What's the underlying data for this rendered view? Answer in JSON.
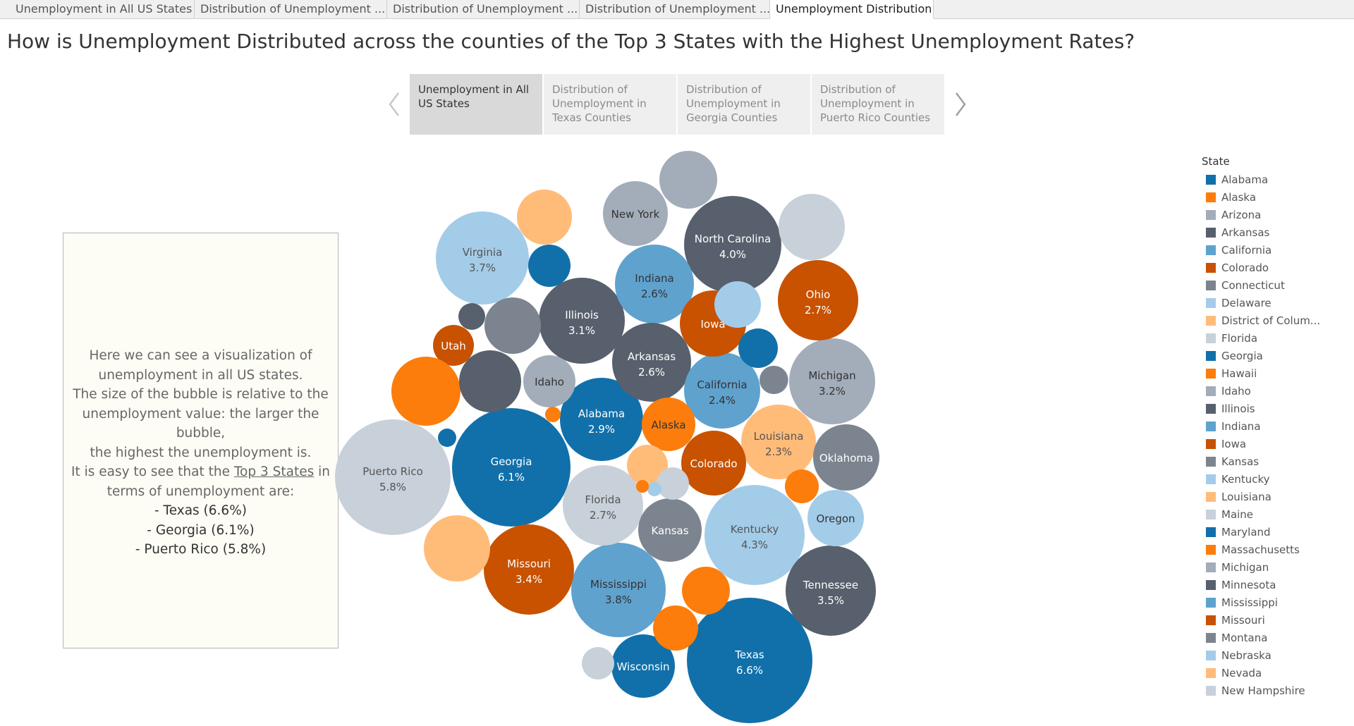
{
  "tabs": [
    {
      "label": "Unemployment in All US States",
      "active": false
    },
    {
      "label": "Distribution of Unemployment ...",
      "active": false
    },
    {
      "label": "Distribution of Unemployment ...",
      "active": false
    },
    {
      "label": "Distribution of Unemployment ...",
      "active": false
    },
    {
      "label": "Unemployment Distribution",
      "active": true
    }
  ],
  "title": "How is Unemployment Distributed across the counties of the Top 3 States with the Highest Unemployment Rates?",
  "story_points": [
    {
      "label": "Unemployment in All US States",
      "active": true
    },
    {
      "label": "Distribution of Unemployment in Texas Counties",
      "active": false
    },
    {
      "label": "Distribution of Unemployment in Georgia Counties",
      "active": false
    },
    {
      "label": "Distribution of Unemployment in Puerto Rico Counties",
      "active": false
    }
  ],
  "textbox": {
    "line1": "Here we can see a visualization of",
    "line2": "unemployment in all US states.",
    "line3": "The size of the bubble is relative to the",
    "line4": "unemployment value: the larger the bubble,",
    "line5": "the highest the unemployment is.",
    "line6_pre": "It is easy to see that the ",
    "line6_link": "Top 3 States",
    "line6_post": " in",
    "line7": "terms of unemployment are:",
    "item1": "- Texas (6.6%)",
    "item2": "- Georgia (6.1%)",
    "item3": "- Puerto Rico (5.8%)"
  },
  "legend": {
    "title": "State",
    "items": [
      {
        "label": "Alabama",
        "color": "#1170aa"
      },
      {
        "label": "Alaska",
        "color": "#fc7d0b"
      },
      {
        "label": "Arizona",
        "color": "#a3acb9"
      },
      {
        "label": "Arkansas",
        "color": "#57606c"
      },
      {
        "label": "California",
        "color": "#5fa2ce"
      },
      {
        "label": "Colorado",
        "color": "#c85200"
      },
      {
        "label": "Connecticut",
        "color": "#7b848f"
      },
      {
        "label": "Delaware",
        "color": "#a3cce9"
      },
      {
        "label": "District of Colum...",
        "color": "#ffbc79"
      },
      {
        "label": "Florida",
        "color": "#c8d0d9"
      },
      {
        "label": "Georgia",
        "color": "#1170aa"
      },
      {
        "label": "Hawaii",
        "color": "#fc7d0b"
      },
      {
        "label": "Idaho",
        "color": "#a3acb9"
      },
      {
        "label": "Illinois",
        "color": "#57606c"
      },
      {
        "label": "Indiana",
        "color": "#5fa2ce"
      },
      {
        "label": "Iowa",
        "color": "#c85200"
      },
      {
        "label": "Kansas",
        "color": "#7b848f"
      },
      {
        "label": "Kentucky",
        "color": "#a3cce9"
      },
      {
        "label": "Louisiana",
        "color": "#ffbc79"
      },
      {
        "label": "Maine",
        "color": "#c8d0d9"
      },
      {
        "label": "Maryland",
        "color": "#1170aa"
      },
      {
        "label": "Massachusetts",
        "color": "#fc7d0b"
      },
      {
        "label": "Michigan",
        "color": "#a3acb9"
      },
      {
        "label": "Minnesota",
        "color": "#57606c"
      },
      {
        "label": "Mississippi",
        "color": "#5fa2ce"
      },
      {
        "label": "Missouri",
        "color": "#c85200"
      },
      {
        "label": "Montana",
        "color": "#7b848f"
      },
      {
        "label": "Nebraska",
        "color": "#a3cce9"
      },
      {
        "label": "Nevada",
        "color": "#ffbc79"
      },
      {
        "label": "New Hampshire",
        "color": "#c8d0d9"
      }
    ]
  },
  "chart_data": {
    "type": "bubble",
    "measure": "Unemployment rate (%)",
    "color_by": "State",
    "bubbles": [
      {
        "state": "Texas",
        "label": "Texas",
        "value": "6.6%",
        "v": 6.6,
        "color": "#1170aa",
        "text_color": "#ffffff"
      },
      {
        "state": "Georgia",
        "label": "Georgia",
        "value": "6.1%",
        "v": 6.1,
        "color": "#1170aa",
        "text_color": "#ffffff"
      },
      {
        "state": "Puerto Rico",
        "label": "Puerto Rico",
        "value": "5.8%",
        "v": 5.8,
        "color": "#c8d0d9",
        "text_color": "#555555"
      },
      {
        "state": "Kentucky",
        "label": "Kentucky",
        "value": "4.3%",
        "v": 4.3,
        "color": "#a3cce9",
        "text_color": "#555555"
      },
      {
        "state": "North Carolina",
        "label": "North Carolina",
        "value": "4.0%",
        "v": 4.0,
        "color": "#57606c",
        "text_color": "#ffffff"
      },
      {
        "state": "Mississippi",
        "label": "Mississippi",
        "value": "3.8%",
        "v": 3.8,
        "color": "#5fa2ce",
        "text_color": "#333333"
      },
      {
        "state": "Virginia",
        "label": "Virginia",
        "value": "3.7%",
        "v": 3.7,
        "color": "#a3cce9",
        "text_color": "#555555"
      },
      {
        "state": "Tennessee",
        "label": "Tennessee",
        "value": "3.5%",
        "v": 3.5,
        "color": "#57606c",
        "text_color": "#ffffff"
      },
      {
        "state": "Missouri",
        "label": "Missouri",
        "value": "3.4%",
        "v": 3.4,
        "color": "#c85200",
        "text_color": "#ffffff"
      },
      {
        "state": "Michigan",
        "label": "Michigan",
        "value": "3.2%",
        "v": 3.2,
        "color": "#a3acb9",
        "text_color": "#333333"
      },
      {
        "state": "Illinois",
        "label": "Illinois",
        "value": "3.1%",
        "v": 3.1,
        "color": "#57606c",
        "text_color": "#ffffff"
      },
      {
        "state": "Alabama",
        "label": "Alabama",
        "value": "2.9%",
        "v": 2.9,
        "color": "#1170aa",
        "text_color": "#ffffff"
      },
      {
        "state": "Ohio",
        "label": "Ohio",
        "value": "2.7%",
        "v": 2.7,
        "color": "#c85200",
        "text_color": "#ffffff"
      },
      {
        "state": "Florida",
        "label": "Florida",
        "value": "2.7%",
        "v": 2.7,
        "color": "#c8d0d9",
        "text_color": "#555555"
      },
      {
        "state": "Indiana",
        "label": "Indiana",
        "value": "2.6%",
        "v": 2.6,
        "color": "#5fa2ce",
        "text_color": "#333333"
      },
      {
        "state": "Arkansas",
        "label": "Arkansas",
        "value": "2.6%",
        "v": 2.6,
        "color": "#57606c",
        "text_color": "#ffffff"
      },
      {
        "state": "California",
        "label": "California",
        "value": "2.4%",
        "v": 2.4,
        "color": "#5fa2ce",
        "text_color": "#333333"
      },
      {
        "state": "Louisiana",
        "label": "Louisiana",
        "value": "2.3%",
        "v": 2.3,
        "color": "#ffbc79",
        "text_color": "#555555"
      },
      {
        "state": "Oklahoma",
        "label": "Oklahoma",
        "value": "",
        "v": 2.2,
        "color": "#7b848f",
        "text_color": "#ffffff"
      },
      {
        "state": "Iowa",
        "label": "Iowa",
        "value": "",
        "v": 2.1,
        "color": "#c85200",
        "text_color": "#ffffff"
      },
      {
        "state": "Kansas",
        "label": "Kansas",
        "value": "",
        "v": 2.1,
        "color": "#7b848f",
        "text_color": "#ffffff"
      },
      {
        "state": "Colorado",
        "label": "Colorado",
        "value": "",
        "v": 2.1,
        "color": "#c85200",
        "text_color": "#ffffff"
      },
      {
        "state": "New York",
        "label": "New York",
        "value": "",
        "v": 2.0,
        "color": "#a3acb9",
        "text_color": "#333333"
      },
      {
        "state": "Wisconsin",
        "label": "Wisconsin",
        "value": "",
        "v": 2.0,
        "color": "#1170aa",
        "text_color": "#ffffff"
      },
      {
        "state": "Oregon",
        "label": "Oregon",
        "value": "",
        "v": 1.8,
        "color": "#a3cce9",
        "text_color": "#333333"
      },
      {
        "state": "Idaho",
        "label": "Idaho",
        "value": "",
        "v": 1.7,
        "color": "#a3acb9",
        "text_color": "#333333"
      },
      {
        "state": "Alaska",
        "label": "Alaska",
        "value": "",
        "v": 1.6,
        "color": "#fc7d0b",
        "text_color": "#333333"
      },
      {
        "state": "Utah",
        "label": "Utah",
        "value": "",
        "v": 1.5,
        "color": "#c85200",
        "text_color": "#ffffff"
      },
      {
        "state": "",
        "label": "",
        "value": "",
        "v": 2.2,
        "color": "#fc7d0b",
        "text_color": "#ffffff"
      },
      {
        "state": "",
        "label": "",
        "value": "",
        "v": 2.0,
        "color": "#57606c",
        "text_color": "#ffffff"
      },
      {
        "state": "",
        "label": "",
        "value": "",
        "v": 2.1,
        "color": "#ffbc79",
        "text_color": "#ffffff"
      },
      {
        "state": "",
        "label": "",
        "value": "",
        "v": 2.0,
        "color": "#c8d0d9",
        "text_color": "#ffffff"
      },
      {
        "state": "",
        "label": "",
        "value": "",
        "v": 1.8,
        "color": "#ffbc79",
        "text_color": "#ffffff"
      },
      {
        "state": "",
        "label": "",
        "value": "",
        "v": 1.8,
        "color": "#a3acb9",
        "text_color": "#ffffff"
      },
      {
        "state": "",
        "label": "",
        "value": "",
        "v": 1.7,
        "color": "#7b848f",
        "text_color": "#ffffff"
      },
      {
        "state": "",
        "label": "",
        "value": "",
        "v": 1.6,
        "color": "#a3cce9",
        "text_color": "#ffffff"
      },
      {
        "state": "",
        "label": "",
        "value": "",
        "v": 1.5,
        "color": "#fc7d0b",
        "text_color": "#ffffff"
      },
      {
        "state": "",
        "label": "",
        "value": "",
        "v": 1.3,
        "color": "#1170aa",
        "text_color": "#ffffff"
      },
      {
        "state": "",
        "label": "",
        "value": "",
        "v": 1.3,
        "color": "#5fa2ce",
        "text_color": "#ffffff"
      },
      {
        "state": "",
        "label": "",
        "value": "",
        "v": 1.2,
        "color": "#1170aa",
        "text_color": "#ffffff"
      },
      {
        "state": "",
        "label": "",
        "value": "",
        "v": 1.2,
        "color": "#a3acb9",
        "text_color": "#ffffff"
      },
      {
        "state": "",
        "label": "",
        "value": "",
        "v": 1.1,
        "color": "#ffbc79",
        "text_color": "#ffffff"
      },
      {
        "state": "",
        "label": "",
        "value": "",
        "v": 1.1,
        "color": "#fc7d0b",
        "text_color": "#ffffff"
      },
      {
        "state": "",
        "label": "",
        "value": "",
        "v": 1.0,
        "color": "#c8d0d9",
        "text_color": "#ffffff"
      },
      {
        "state": "",
        "label": "",
        "value": "",
        "v": 1.0,
        "color": "#fc7d0b",
        "text_color": "#ffffff"
      },
      {
        "state": "",
        "label": "",
        "value": "",
        "v": 0.9,
        "color": "#7b848f",
        "text_color": "#ffffff"
      },
      {
        "state": "",
        "label": "",
        "value": "",
        "v": 0.8,
        "color": "#c8d0d9",
        "text_color": "#ffffff"
      },
      {
        "state": "",
        "label": "",
        "value": "",
        "v": 0.7,
        "color": "#57606c",
        "text_color": "#ffffff"
      },
      {
        "state": "",
        "label": "",
        "value": "",
        "v": 0.5,
        "color": "#1170aa",
        "text_color": "#ffffff"
      },
      {
        "state": "",
        "label": "",
        "value": "",
        "v": 0.5,
        "color": "#fc7d0b",
        "text_color": "#ffffff"
      },
      {
        "state": "",
        "label": "",
        "value": "",
        "v": 0.3,
        "color": "#a3cce9",
        "text_color": "#ffffff"
      },
      {
        "state": "",
        "label": "",
        "value": "",
        "v": 0.2,
        "color": "#fc7d0b",
        "text_color": "#ffffff"
      }
    ]
  }
}
